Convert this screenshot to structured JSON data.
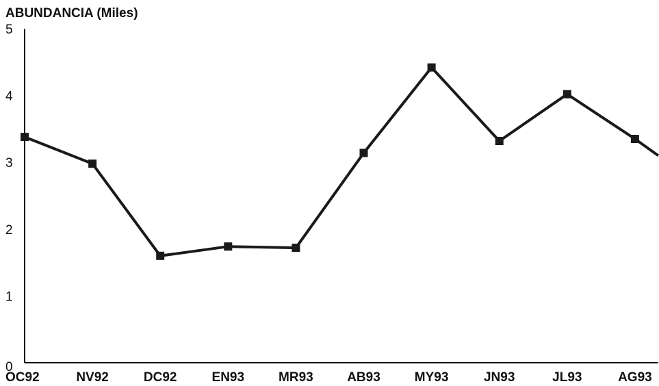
{
  "chart_data": {
    "type": "line",
    "title": "",
    "ylabel": "ABUNDANCIA (Miles)",
    "xlabel": "",
    "ylim": [
      0,
      5
    ],
    "yticks": [
      0,
      1,
      2,
      3,
      4,
      5
    ],
    "grid": false,
    "categories": [
      "OC92",
      "NV92",
      "DC92",
      "EN93",
      "MR93",
      "AB93",
      "MY93",
      "JN93",
      "JL93",
      "AG93"
    ],
    "series": [
      {
        "values": [
          3.38,
          2.98,
          1.6,
          1.74,
          1.72,
          3.14,
          4.42,
          3.32,
          4.02,
          3.35
        ],
        "trailing_value": 3.1,
        "color": "#1a1a1a",
        "marker": "square"
      }
    ]
  }
}
